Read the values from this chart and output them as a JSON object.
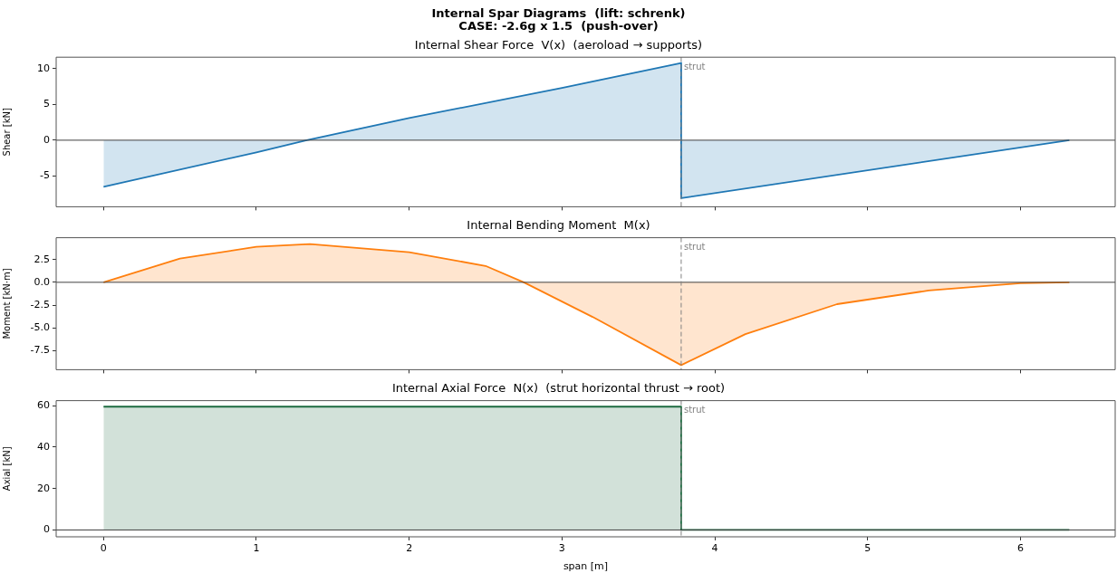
{
  "chart_data": [
    {
      "type": "area",
      "title": "Internal Spar Diagrams  (lift: schrenk)\nCASE: -2.6g x 1.5  (push-over)",
      "subtitle": "Internal Shear Force  V(x)  (aeroload → supports)",
      "ylabel": "Shear [kN]",
      "xlim": [
        -0.31,
        6.62
      ],
      "xticks": [
        0,
        1,
        2,
        3,
        4,
        5,
        6
      ],
      "ylim": [
        -9.3,
        11.6
      ],
      "yticks": [
        -5,
        0,
        5,
        10
      ],
      "tick_labels": "y",
      "grid": false,
      "legend": false,
      "series": [
        {
          "color": "#1f77b4",
          "x": [
            0,
            1,
            1.33,
            2,
            3,
            3.78,
            3.78,
            6.32
          ],
          "values": [
            -6.5,
            -1.7,
            0,
            3.1,
            7.3,
            10.8,
            -8.1,
            0
          ]
        }
      ],
      "ref_lines": [
        {
          "axis": "y",
          "value": 0,
          "color": "#404040",
          "line_style": "solid"
        },
        {
          "axis": "x",
          "value": 3.78,
          "label": "strut",
          "color": "#808080",
          "line_style": "dashed"
        }
      ]
    },
    {
      "type": "area",
      "title": "Internal Bending Moment  M(x)",
      "ylabel": "Moment [kN·m]",
      "xlim": [
        -0.31,
        6.62
      ],
      "xticks": [
        0,
        1,
        2,
        3,
        4,
        5,
        6
      ],
      "ylim": [
        -9.6,
        4.9
      ],
      "yticks": [
        -7.5,
        {
          "value": -5,
          "label": "-5.0"
        },
        -2.5,
        {
          "value": 0,
          "label": "0.0"
        },
        2.5
      ],
      "tick_labels": "y",
      "grid": false,
      "legend": false,
      "series": [
        {
          "color": "#ff7f0e",
          "x": [
            0,
            0.5,
            1,
            1.35,
            2,
            2.5,
            2.75,
            3.2,
            3.78,
            4.2,
            4.8,
            5.4,
            6,
            6.32
          ],
          "values": [
            0,
            2.6,
            3.9,
            4.2,
            3.3,
            1.8,
            0,
            -3.8,
            -9.1,
            -5.7,
            -2.4,
            -0.9,
            -0.1,
            0
          ]
        }
      ],
      "ref_lines": [
        {
          "axis": "y",
          "value": 0,
          "color": "#404040",
          "line_style": "solid"
        },
        {
          "axis": "x",
          "value": 3.78,
          "label": "strut",
          "color": "#808080",
          "line_style": "dashed"
        }
      ]
    },
    {
      "type": "area",
      "title": "Internal Axial Force  N(x)  (strut horizontal thrust → root)",
      "xlabel": "span [m]",
      "ylabel": "Axial [kN]",
      "xlim": [
        -0.31,
        6.62
      ],
      "xticks": [
        0,
        1,
        2,
        3,
        4,
        5,
        6
      ],
      "ylim": [
        -3.3,
        62.4
      ],
      "yticks": [
        0,
        20,
        40,
        60
      ],
      "grid": false,
      "legend": false,
      "series": [
        {
          "color": "#1d6b40",
          "x": [
            0,
            3.78,
            3.78,
            6.32
          ],
          "values": [
            59.5,
            59.5,
            0,
            0
          ]
        }
      ],
      "ref_lines": [
        {
          "axis": "y",
          "value": 0,
          "color": "#404040",
          "line_style": "solid"
        },
        {
          "axis": "x",
          "value": 3.78,
          "label": "strut",
          "color": "#808080",
          "line_style": "dashed"
        }
      ]
    }
  ]
}
